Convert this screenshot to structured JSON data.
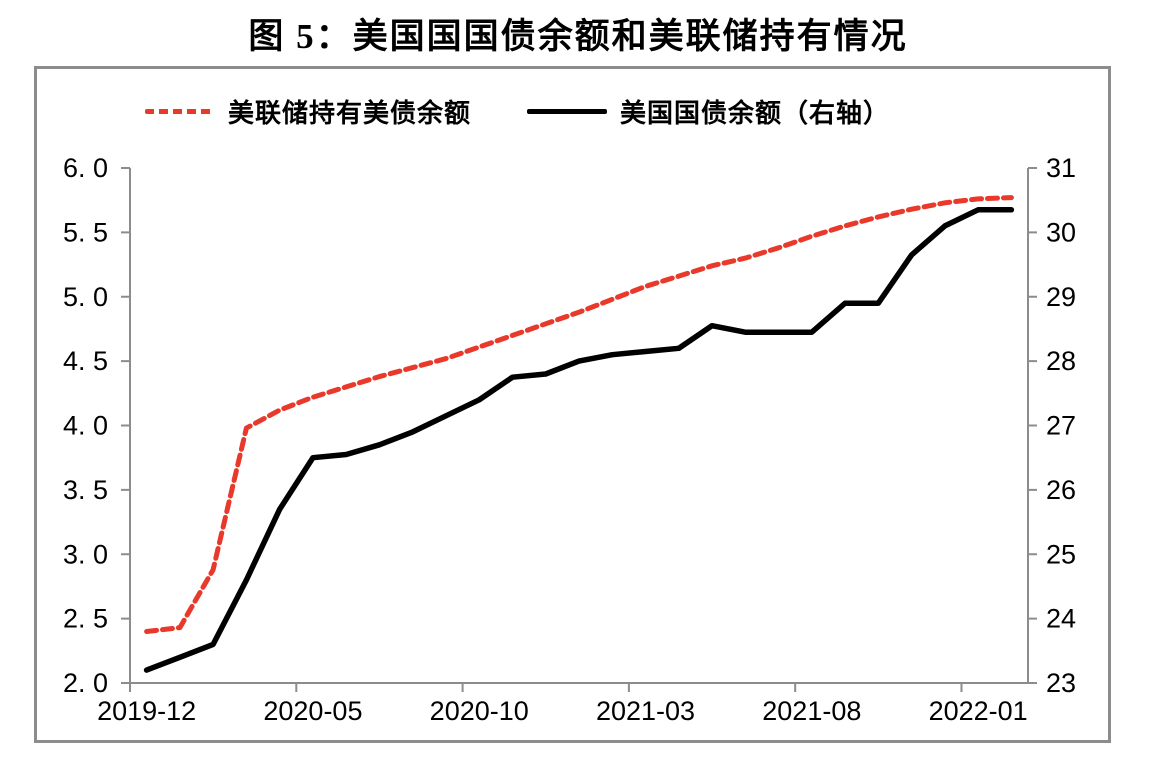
{
  "figure": {
    "title": "图 5：美国国国债余额和美联储持有情况"
  },
  "legend": [
    {
      "label": "美联储持有美债余额",
      "color": "#e8392b",
      "style": "dashed"
    },
    {
      "label": "美国国债余额（右轴）",
      "color": "#000000",
      "style": "solid"
    }
  ],
  "colors": {
    "series_red": "#e8392b",
    "series_black": "#000000",
    "axis_line": "#8c8c8c",
    "frame_border": "#8c8c8c",
    "text": "#000000"
  },
  "chart_data": {
    "type": "line",
    "title": "图 5：美国国国债余额和美联储持有情况",
    "x": [
      "2019-12",
      "2020-01",
      "2020-02",
      "2020-03",
      "2020-04",
      "2020-05",
      "2020-06",
      "2020-07",
      "2020-08",
      "2020-09",
      "2020-10",
      "2020-11",
      "2020-12",
      "2021-01",
      "2021-02",
      "2021-03",
      "2021-04",
      "2021-05",
      "2021-06",
      "2021-07",
      "2021-08",
      "2021-09",
      "2021-10",
      "2021-11",
      "2021-12",
      "2022-01",
      "2022-02"
    ],
    "x_tick_labels": [
      "2019-12",
      "2020-05",
      "2020-10",
      "2021-03",
      "2021-08",
      "2022-01"
    ],
    "x_tick_every": 5,
    "series": [
      {
        "name": "美联储持有美债余额",
        "axis": "left",
        "color": "#e8392b",
        "line_style": "dashed",
        "values": [
          2.4,
          2.43,
          2.88,
          3.98,
          4.12,
          4.22,
          4.3,
          4.38,
          4.45,
          4.52,
          4.61,
          4.7,
          4.79,
          4.88,
          4.98,
          5.08,
          5.16,
          5.24,
          5.3,
          5.38,
          5.47,
          5.55,
          5.62,
          5.68,
          5.73,
          5.76,
          5.77
        ]
      },
      {
        "name": "美国国债余额（右轴）",
        "axis": "right",
        "color": "#000000",
        "line_style": "solid",
        "values": [
          23.2,
          23.4,
          23.6,
          24.6,
          25.7,
          26.5,
          26.55,
          26.7,
          26.9,
          27.15,
          27.4,
          27.75,
          27.8,
          28.0,
          28.1,
          28.15,
          28.2,
          28.55,
          28.45,
          28.45,
          28.45,
          28.9,
          28.9,
          29.65,
          30.1,
          30.35,
          30.35
        ]
      }
    ],
    "left_axis": {
      "min": 2.0,
      "max": 6.0,
      "step": 0.5,
      "tick_labels": [
        "6. 0",
        "5. 5",
        "5. 0",
        "4. 5",
        "4. 0",
        "3. 5",
        "3. 0",
        "2. 5",
        "2. 0"
      ]
    },
    "right_axis": {
      "min": 23,
      "max": 31,
      "step": 1,
      "tick_labels": [
        "31",
        "30",
        "29",
        "28",
        "27",
        "26",
        "25",
        "24",
        "23"
      ]
    },
    "grid": false,
    "legend_position": "top"
  }
}
